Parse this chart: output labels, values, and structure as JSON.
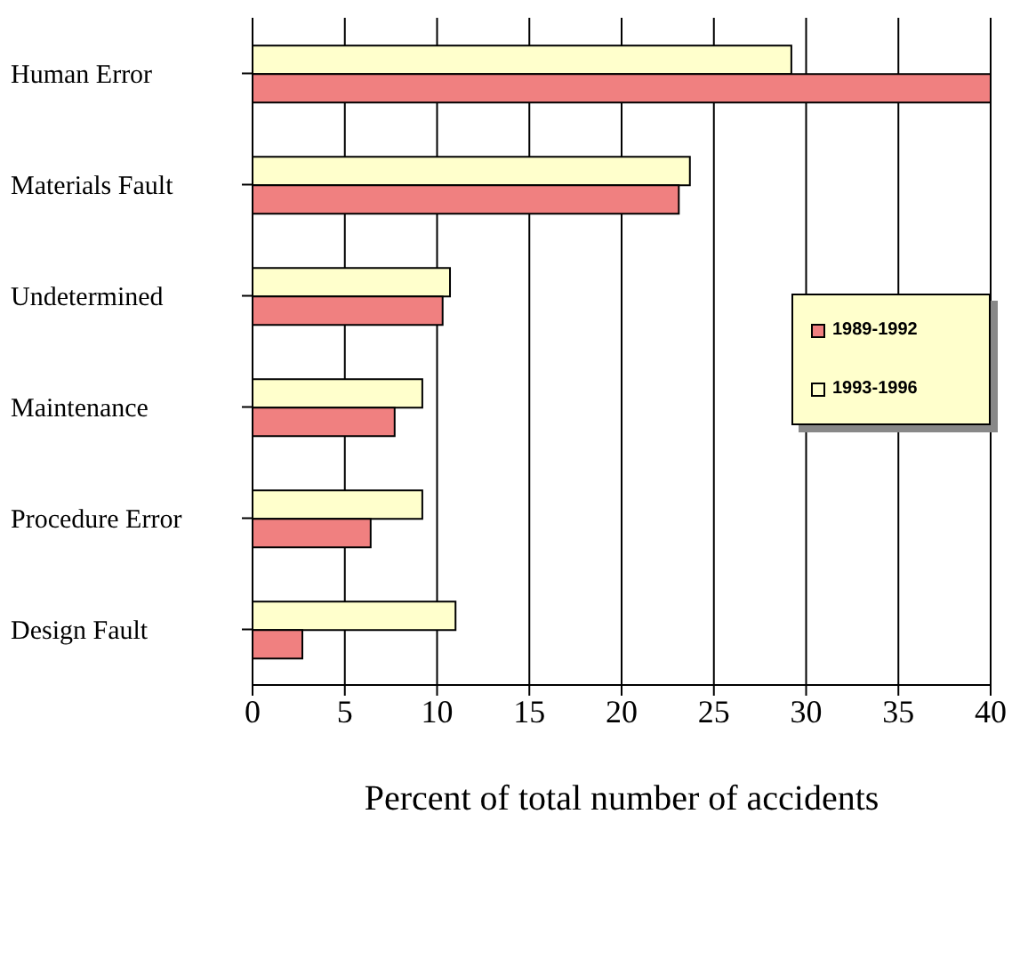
{
  "chart_data": {
    "type": "bar",
    "orientation": "horizontal",
    "xlabel": "Percent of total number of accidents",
    "categories": [
      "Human Error",
      "Materials  Fault",
      "Undetermined",
      "Maintenance",
      "Procedure Error",
      "Design Fault"
    ],
    "series": [
      {
        "name": "1989-1992",
        "color": "#f08080",
        "values": [
          40,
          23.1,
          10.3,
          7.7,
          6.4,
          2.7
        ]
      },
      {
        "name": "1993-1996",
        "color": "#ffffcc",
        "values": [
          29.2,
          23.7,
          10.7,
          9.2,
          9.2,
          11
        ]
      }
    ],
    "xlim": [
      0,
      40
    ],
    "xticks": [
      0,
      5,
      10,
      15,
      20,
      25,
      30,
      35,
      40
    ],
    "grid": "x",
    "legend": "right"
  }
}
